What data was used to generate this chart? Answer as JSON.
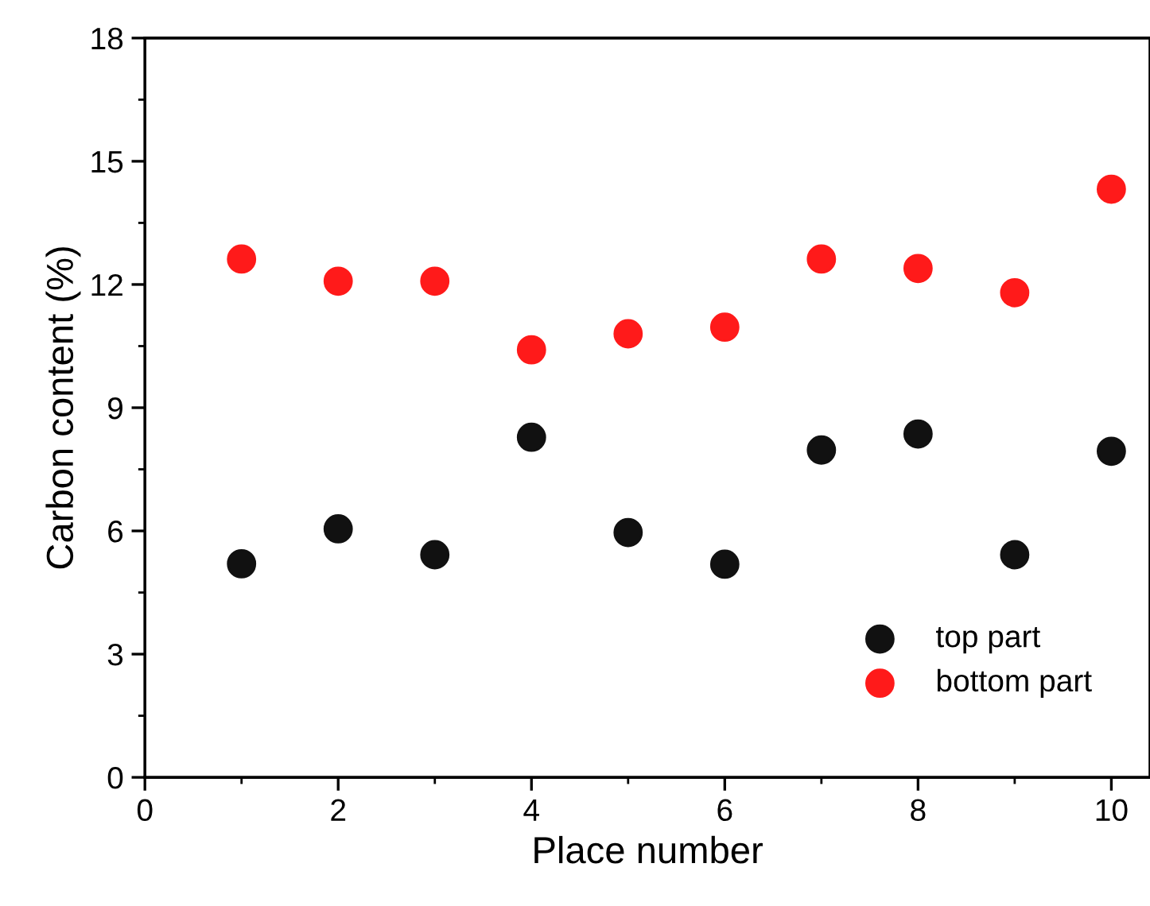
{
  "chart_data": {
    "type": "scatter",
    "xlabel": "Place number",
    "ylabel": "Carbon content (%)",
    "x": [
      1,
      2,
      3,
      4,
      5,
      6,
      7,
      8,
      9,
      10
    ],
    "series": [
      {
        "name": "top part",
        "color": "#111111",
        "values": [
          5.2,
          6.05,
          5.42,
          8.28,
          5.96,
          5.19,
          7.97,
          8.36,
          5.42,
          7.94
        ]
      },
      {
        "name": "bottom part",
        "color": "#ff1a1a",
        "values": [
          12.62,
          12.08,
          12.08,
          10.41,
          10.8,
          10.96,
          12.62,
          12.39,
          11.8,
          14.32
        ]
      }
    ],
    "xlim": [
      0,
      10.4
    ],
    "xticks": [
      0,
      2,
      4,
      6,
      8,
      10
    ],
    "ylim": [
      0,
      18
    ],
    "yticks": [
      0,
      3,
      6,
      9,
      12,
      15,
      18
    ],
    "grid": false,
    "legend": "bottom right",
    "marker": "circle"
  }
}
